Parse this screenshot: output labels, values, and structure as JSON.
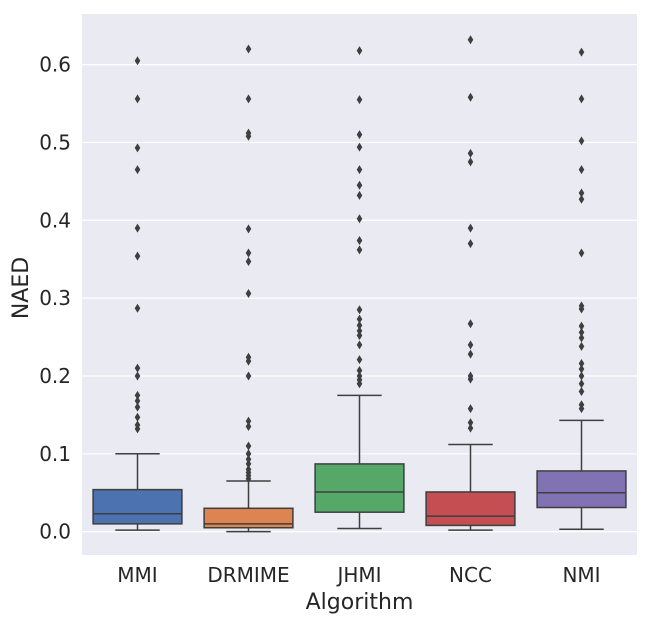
{
  "chart_data": {
    "type": "box",
    "xlabel": "Algorithm",
    "ylabel": "NAED",
    "ylim": [
      -0.03,
      0.665
    ],
    "yticks": [
      0.0,
      0.1,
      0.2,
      0.3,
      0.4,
      0.5,
      0.6
    ],
    "ytick_labels": [
      "0.0",
      "0.1",
      "0.2",
      "0.3",
      "0.4",
      "0.5",
      "0.6"
    ],
    "grid": true,
    "background": "#eaeaf2",
    "categories": [
      "MMI",
      "DRMIME",
      "JHMI",
      "NCC",
      "NMI"
    ],
    "series": [
      {
        "category": "MMI",
        "color": "#4c72b0",
        "whisker_low": 0.002,
        "q1": 0.01,
        "median": 0.023,
        "q3": 0.054,
        "whisker_high": 0.1,
        "outliers": [
          0.605,
          0.556,
          0.493,
          0.465,
          0.39,
          0.354,
          0.287,
          0.21,
          0.2,
          0.175,
          0.168,
          0.16,
          0.147,
          0.137,
          0.132
        ]
      },
      {
        "category": "DRMIME",
        "color": "#dd8452",
        "whisker_low": 0.0,
        "q1": 0.005,
        "median": 0.01,
        "q3": 0.03,
        "whisker_high": 0.065,
        "outliers": [
          0.62,
          0.556,
          0.512,
          0.508,
          0.389,
          0.358,
          0.347,
          0.306,
          0.224,
          0.219,
          0.2,
          0.142,
          0.135,
          0.11,
          0.1,
          0.093,
          0.087,
          0.08,
          0.076,
          0.072,
          0.068
        ]
      },
      {
        "category": "JHMI",
        "color": "#55a868",
        "whisker_low": 0.004,
        "q1": 0.025,
        "median": 0.051,
        "q3": 0.087,
        "whisker_high": 0.175,
        "outliers": [
          0.618,
          0.555,
          0.51,
          0.494,
          0.465,
          0.445,
          0.432,
          0.402,
          0.374,
          0.362,
          0.285,
          0.273,
          0.265,
          0.258,
          0.252,
          0.24,
          0.221,
          0.207,
          0.2,
          0.195,
          0.19
        ]
      },
      {
        "category": "NCC",
        "color": "#c44e52",
        "whisker_low": 0.002,
        "q1": 0.008,
        "median": 0.02,
        "q3": 0.051,
        "whisker_high": 0.112,
        "outliers": [
          0.632,
          0.558,
          0.486,
          0.475,
          0.39,
          0.37,
          0.267,
          0.24,
          0.228,
          0.2,
          0.196,
          0.158,
          0.14,
          0.133
        ]
      },
      {
        "category": "NMI",
        "color": "#8172b3",
        "whisker_low": 0.003,
        "q1": 0.031,
        "median": 0.05,
        "q3": 0.078,
        "whisker_high": 0.143,
        "outliers": [
          0.616,
          0.556,
          0.502,
          0.465,
          0.435,
          0.427,
          0.358,
          0.29,
          0.286,
          0.264,
          0.256,
          0.249,
          0.238,
          0.216,
          0.209,
          0.2,
          0.19,
          0.18,
          0.163,
          0.158
        ]
      }
    ]
  }
}
